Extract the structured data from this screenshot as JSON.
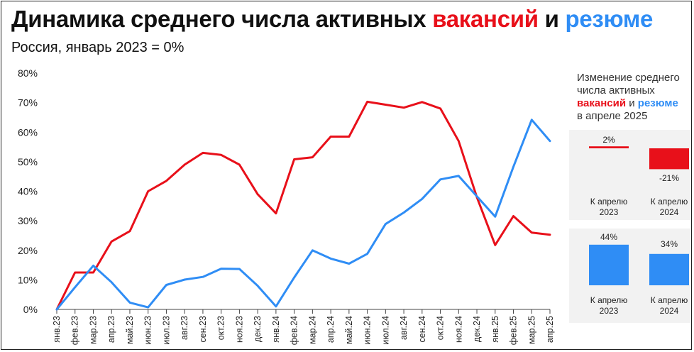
{
  "title": {
    "part1": "Динамика среднего числа активных ",
    "vac": "вакансий",
    "and": " и ",
    "res": "резюме"
  },
  "subtitle": "Россия, январь 2023 = 0%",
  "colors": {
    "vacancies": "#e8101a",
    "resumes": "#2f8df5",
    "grid": "#e3e3e3"
  },
  "chart_data": {
    "type": "line",
    "title": "Динамика среднего числа активных вакансий и резюме",
    "subtitle": "Россия, январь 2023 = 0%",
    "categories": [
      "янв.23",
      "фев.23",
      "мар.23",
      "апр.23",
      "май.23",
      "июн.23",
      "июл.23",
      "авг.23",
      "сен.23",
      "окт.23",
      "ноя.23",
      "дек.23",
      "янв.24",
      "фев.24",
      "мар.24",
      "апр.24",
      "май.24",
      "июн.24",
      "июл.24",
      "авг.24",
      "сен.24",
      "окт.24",
      "ноя.24",
      "дек.24",
      "янв.25",
      "фев.25",
      "мар.25",
      "апр.25"
    ],
    "y_ticks": [
      "0%",
      "10%",
      "20%",
      "30%",
      "40%",
      "50%",
      "60%",
      "70%",
      "80%"
    ],
    "ylim": [
      0,
      80
    ],
    "grid": false,
    "series": [
      {
        "name": "вакансий",
        "color": "#e8101a",
        "values": [
          0,
          12.5,
          12.5,
          23,
          26.5,
          40,
          43.5,
          49,
          53,
          52.3,
          49,
          39,
          32.5,
          50.8,
          51.5,
          58.5,
          58.5,
          70.3,
          69.3,
          68.3,
          70.2,
          68,
          57,
          38,
          21.8,
          31.6,
          26,
          25.3
        ]
      },
      {
        "name": "резюме",
        "color": "#2f8df5",
        "values": [
          0,
          7.5,
          14.8,
          9.2,
          2.3,
          0.7,
          8.3,
          10.1,
          11,
          13.8,
          13.7,
          8,
          1,
          10.8,
          20,
          17.2,
          15.5,
          18.8,
          28.9,
          32.8,
          37.4,
          44,
          45.2,
          38.3,
          31.4,
          48.3,
          64.2,
          57
        ]
      }
    ]
  },
  "side_panel": {
    "heading_line1": "Изменение среднего",
    "heading_line2": "числа активных",
    "heading_vac": "вакансий",
    "heading_and": " и ",
    "heading_res": "резюме",
    "heading_line4": "в апреле 2025",
    "chart_data": [
      {
        "type": "bar",
        "series": "вакансий",
        "categories": [
          "К апрелю 2023",
          "К апрелю 2024"
        ],
        "values": [
          2,
          -21
        ],
        "labels": [
          "2%",
          "-21%"
        ]
      },
      {
        "type": "bar",
        "series": "резюме",
        "categories": [
          "К апрелю 2023",
          "К апрелю 2024"
        ],
        "values": [
          44,
          34
        ],
        "labels": [
          "44%",
          "34%"
        ]
      }
    ],
    "caption_l1": "К апрелю",
    "caption_a": "2023",
    "caption_b": "2024"
  }
}
